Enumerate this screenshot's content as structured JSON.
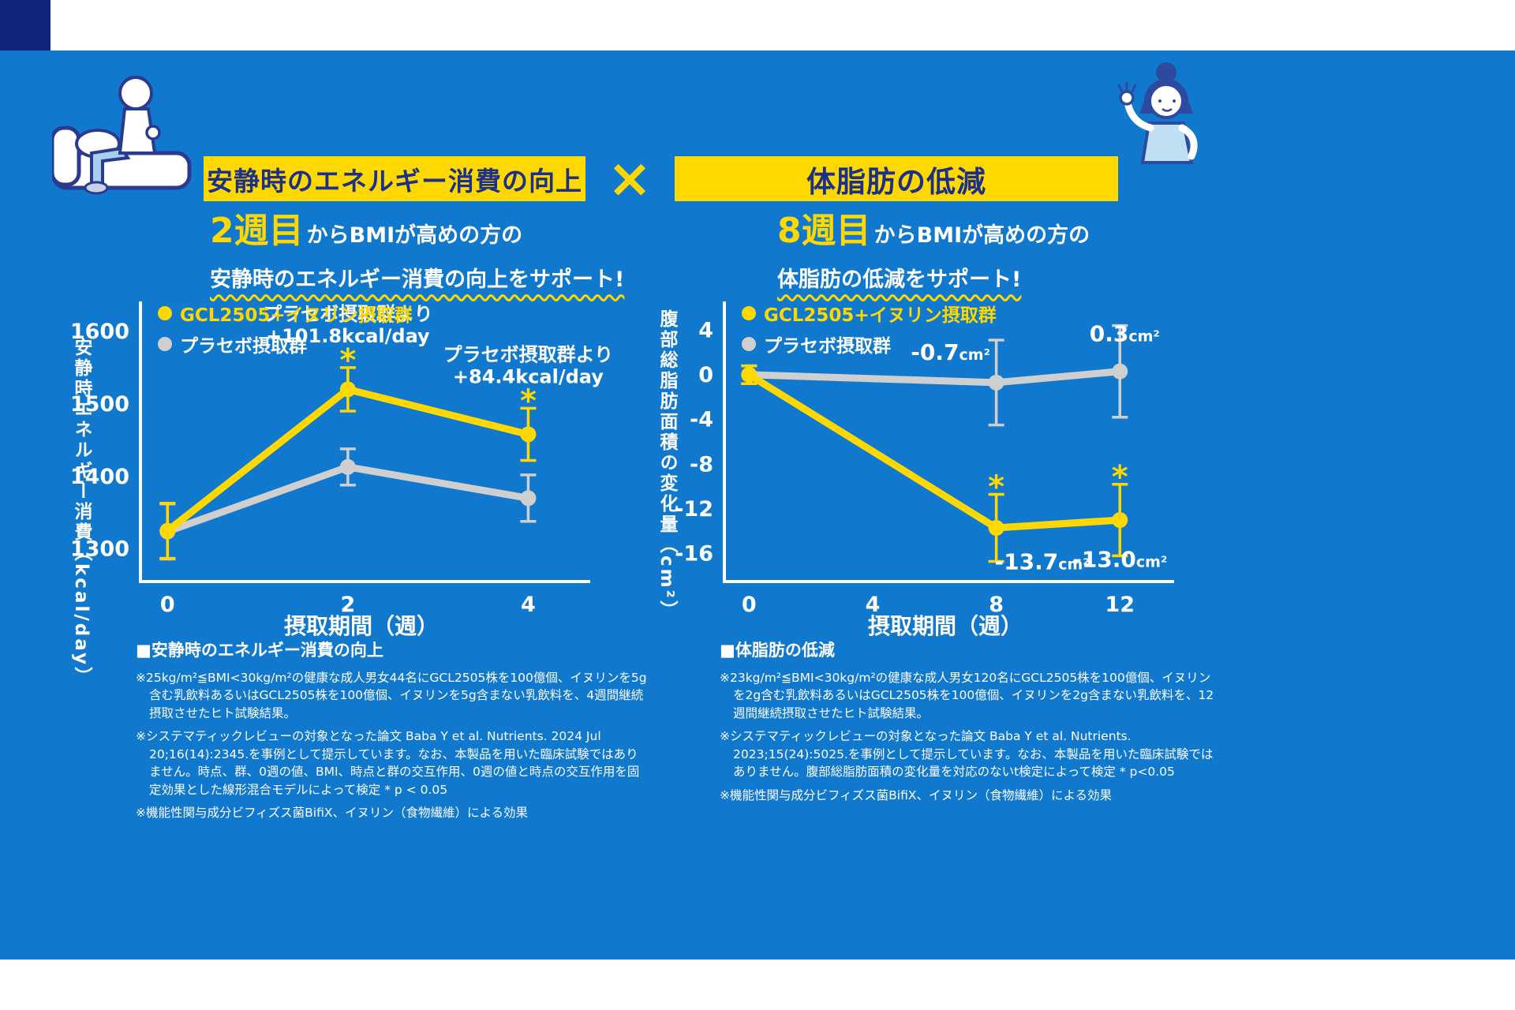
{
  "colors": {
    "background_blue": "#1079CD",
    "accent_yellow": "#FFD800",
    "banner_text_blue": "#1C3087",
    "corner_navy": "#13247D",
    "gray_series": "#CFCFCF",
    "white": "#FFFFFF"
  },
  "divider": {
    "symbol": "×"
  },
  "illustrations": {
    "left": "person-sitting-on-sofa-illustration",
    "right": "woman-ok-sign-illustration"
  },
  "left_section": {
    "banner_title": "安静時のエネルギー消費の向上",
    "headline_week": "2週目",
    "headline_tail": "からBMIが高めの方の",
    "headline_line2": "安静時のエネルギー消費の向上をサポート!",
    "footnote_heading": "■安静時のエネルギー消費の向上",
    "footnote_lines": [
      "※25kg/m²≦BMI<30kg/m²の健康な成人男女44名にGCL2505株を100億個、イヌリンを5g含む乳飲料あるいはGCL2505株を100億個、イヌリンを5g含まない乳飲料を、4週間継続摂取させたヒト試験結果。",
      "※システマティックレビューの対象となった論文 Baba Y et al. Nutrients. 2024 Jul 20;16(14):2345.を事例として提示しています。なお、本製品を用いた臨床試験ではありません。時点、群、0週の値、BMI、時点と群の交互作用、0週の値と時点の交互作用を固定効果とした線形混合モデルによって検定 * p < 0.05",
      "※機能性関与成分ビフィズス菌BifiX、イヌリン（食物繊維）による効果"
    ]
  },
  "right_section": {
    "banner_title": "体脂肪の低減",
    "headline_week": "8週目",
    "headline_tail": "からBMIが高めの方の",
    "headline_line2": "体脂肪の低減をサポート!",
    "footnote_heading": "■体脂肪の低減",
    "footnote_lines": [
      "※23kg/m²≦BMI<30kg/m²の健康な成人男女120名にGCL2505株を100億個、イヌリンを2g含む乳飲料あるいはGCL2505株を100億個、イヌリンを2g含まない乳飲料を、12週間継続摂取させたヒト試験結果。",
      "※システマティックレビューの対象となった論文 Baba Y et al. Nutrients. 2023;15(24):5025.を事例として提示しています。なお、本製品を用いた臨床試験ではありません。腹部総脂肪面積の変化量を対応のないt検定によって検定 * p<0.05",
      "※機能性関与成分ビフィズス菌BifiX、イヌリン（食物繊維）による効果"
    ]
  },
  "chart_data": [
    {
      "type": "line",
      "section": "left",
      "title": "安静時のエネルギー消費の向上",
      "xlabel": "摂取期間（週）",
      "ylabel": "安静時エネルギー消費（kcal/day）",
      "xlim": [
        -0.3,
        4.6
      ],
      "ylim": [
        1255,
        1625
      ],
      "xticks": [
        0,
        2,
        4
      ],
      "yticks": [
        1600,
        1500,
        1400,
        1300
      ],
      "grid": false,
      "legend_position": "top-left-inside",
      "legend": [
        {
          "label": "GCL2505+イヌリン摂取群",
          "color": "#FFD800",
          "text_color": "#FFD800"
        },
        {
          "label": "プラセボ摂取群",
          "color": "#CFCFCF",
          "text_color": "#FFFFFF"
        }
      ],
      "series": [
        {
          "name": "プラセボ摂取群",
          "color": "#CFCFCF",
          "values": [
            {
              "x": 0,
              "y": 1324,
              "err": 38
            },
            {
              "x": 2,
              "y": 1413,
              "err": 25
            },
            {
              "x": 4,
              "y": 1370,
              "err": 32
            }
          ]
        },
        {
          "name": "GCL2505+イヌリン摂取群",
          "color": "#FFD800",
          "values": [
            {
              "x": 0,
              "y": 1325,
              "err": 38
            },
            {
              "x": 2,
              "y": 1520,
              "err": 30,
              "sig": "*"
            },
            {
              "x": 4,
              "y": 1458,
              "err": 36,
              "sig": "*"
            }
          ]
        }
      ],
      "annotations": [
        {
          "series": "GCL2505+イヌリン摂取群",
          "x": 2,
          "lines": [
            "プラセボ摂取群より",
            "+101.8kcal/day"
          ]
        },
        {
          "series": "GCL2505+イヌリン摂取群",
          "x": 4,
          "lines": [
            "プラセボ摂取群より",
            "+84.4kcal/day"
          ]
        }
      ]
    },
    {
      "type": "line",
      "section": "right",
      "title": "体脂肪の低減",
      "xlabel": "摂取期間（週）",
      "ylabel": "腹部総脂肪面積の変化量（cm²）",
      "xlim": [
        -0.8,
        13.5
      ],
      "ylim": [
        -18.5,
        5.5
      ],
      "xticks": [
        0,
        4,
        8,
        12
      ],
      "yticks": [
        4,
        0,
        -4,
        -8,
        -12,
        -16
      ],
      "grid": false,
      "legend_position": "top-left-inside",
      "legend": [
        {
          "label": "GCL2505+イヌリン摂取群",
          "color": "#FFD800",
          "text_color": "#FFD800"
        },
        {
          "label": "プラセボ摂取群",
          "color": "#CFCFCF",
          "text_color": "#FFFFFF"
        }
      ],
      "series": [
        {
          "name": "プラセボ摂取群",
          "color": "#CFCFCF",
          "values": [
            {
              "x": 0,
              "y": 0,
              "err": 0.8
            },
            {
              "x": 8,
              "y": -0.7,
              "err": 3.8,
              "label": "-0.7",
              "unit": "cm²",
              "label_pos": "above-left"
            },
            {
              "x": 12,
              "y": 0.3,
              "err": 4.1,
              "label": "0.3",
              "unit": "cm²",
              "label_pos": "above"
            }
          ]
        },
        {
          "name": "GCL2505+イヌリン摂取群",
          "color": "#FFD800",
          "values": [
            {
              "x": 0,
              "y": 0,
              "err": 0.8
            },
            {
              "x": 8,
              "y": -13.7,
              "err": 3.0,
              "label": "-13.7",
              "unit": "cm²",
              "label_pos": "below-right",
              "sig": "*"
            },
            {
              "x": 12,
              "y": -13.0,
              "err": 3.2,
              "label": "-13.0",
              "unit": "cm²",
              "label_pos": "below",
              "sig": "*"
            }
          ]
        }
      ],
      "annotations": []
    }
  ]
}
